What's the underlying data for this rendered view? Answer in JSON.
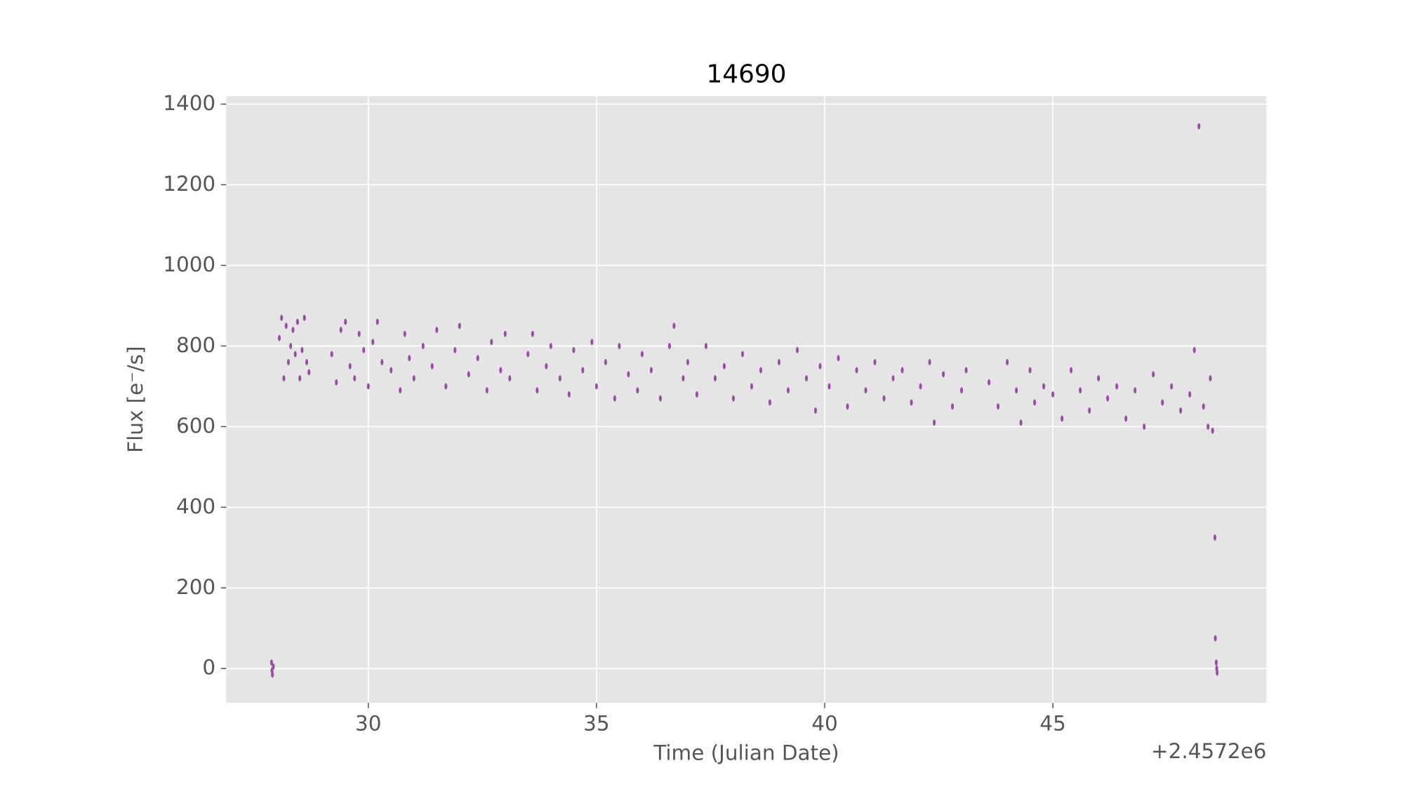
{
  "chart_data": {
    "type": "scatter",
    "title": "14690",
    "x_label": "Time (Julian Date)",
    "y_label": "Flux [e⁻/s]",
    "x_offset_label": "+2.4572e6",
    "xlim": [
      26.89,
      49.68
    ],
    "ylim": [
      -85,
      1420
    ],
    "xticks": [
      30,
      35,
      40,
      45
    ],
    "yticks": [
      0,
      200,
      400,
      600,
      800,
      1000,
      1200,
      1400
    ],
    "grid": true,
    "series": [
      {
        "color": "#984ea3",
        "x": [
          27.88,
          27.9,
          27.92,
          27.89,
          28.05,
          28.1,
          28.15,
          28.2,
          28.25,
          28.3,
          28.35,
          28.4,
          28.45,
          28.5,
          28.55,
          28.6,
          28.65,
          28.7,
          29.2,
          29.3,
          29.4,
          29.5,
          29.6,
          29.7,
          29.8,
          29.9,
          30.0,
          30.1,
          30.2,
          30.3,
          30.5,
          30.7,
          30.8,
          30.9,
          31.0,
          31.2,
          31.4,
          31.5,
          31.7,
          31.9,
          32.0,
          32.2,
          32.4,
          32.6,
          32.7,
          32.9,
          33.0,
          33.1,
          33.5,
          33.6,
          33.7,
          33.9,
          34.0,
          34.2,
          34.4,
          34.5,
          34.7,
          34.9,
          35.0,
          35.2,
          35.4,
          35.5,
          35.7,
          35.9,
          36.0,
          36.2,
          36.4,
          36.6,
          36.7,
          36.9,
          37.0,
          37.2,
          37.4,
          37.6,
          37.8,
          38.0,
          38.2,
          38.4,
          38.6,
          38.8,
          39.0,
          39.2,
          39.4,
          39.6,
          39.8,
          39.9,
          40.1,
          40.3,
          40.5,
          40.7,
          40.9,
          41.1,
          41.3,
          41.5,
          41.7,
          41.9,
          42.1,
          42.3,
          42.4,
          42.6,
          42.8,
          43.0,
          43.1,
          43.6,
          43.8,
          44.0,
          44.2,
          44.3,
          44.5,
          44.6,
          44.8,
          45.0,
          45.2,
          45.4,
          45.6,
          45.8,
          46.0,
          46.2,
          46.4,
          46.6,
          46.8,
          47.0,
          47.2,
          47.4,
          47.6,
          47.8,
          48.0,
          48.1,
          48.2,
          48.3,
          48.4,
          48.45,
          48.5,
          48.55,
          48.56,
          48.58,
          48.59,
          48.6
        ],
        "values": [
          15,
          -15,
          5,
          -5,
          820,
          870,
          720,
          850,
          760,
          800,
          840,
          780,
          860,
          720,
          790,
          870,
          760,
          735,
          780,
          710,
          840,
          860,
          750,
          720,
          830,
          790,
          700,
          810,
          860,
          760,
          740,
          690,
          830,
          770,
          720,
          800,
          750,
          840,
          700,
          790,
          850,
          730,
          770,
          690,
          810,
          740,
          830,
          720,
          780,
          830,
          690,
          750,
          800,
          720,
          680,
          790,
          740,
          810,
          700,
          760,
          670,
          800,
          730,
          690,
          780,
          740,
          670,
          800,
          850,
          720,
          760,
          680,
          800,
          720,
          750,
          670,
          780,
          700,
          740,
          660,
          760,
          690,
          790,
          720,
          640,
          750,
          700,
          770,
          650,
          740,
          690,
          760,
          670,
          720,
          740,
          660,
          700,
          760,
          610,
          730,
          650,
          690,
          740,
          710,
          650,
          760,
          690,
          610,
          740,
          660,
          700,
          680,
          620,
          740,
          690,
          640,
          720,
          670,
          700,
          620,
          690,
          600,
          730,
          660,
          700,
          640,
          680,
          790,
          1345,
          650,
          600,
          720,
          590,
          325,
          75,
          15,
          0,
          -10
        ]
      }
    ]
  }
}
